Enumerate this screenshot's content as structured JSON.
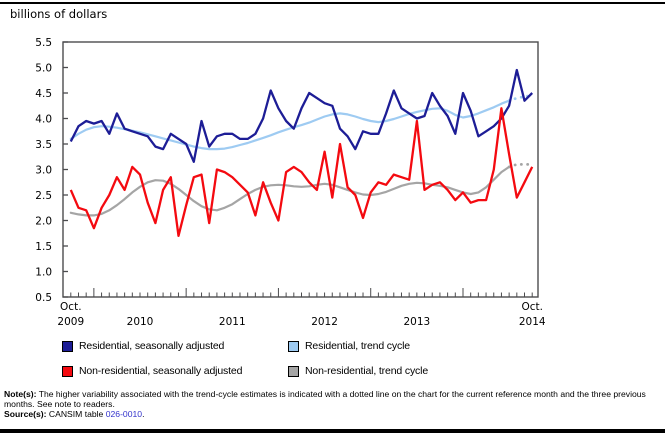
{
  "page": {
    "title": "billions of dollars",
    "note_label": "Note(s):",
    "note_text": " The higher variability associated with the trend-cycle estimates is indicated with a dotted line on the chart for the current reference month and the three previous months. See note to readers.",
    "source_label": "Source(s):",
    "source_text": " CANSIM table ",
    "source_link": "026-0010",
    "source_suffix": "."
  },
  "legend": {
    "items": [
      {
        "label": "Residential, seasonally adjusted",
        "color": "#1d1d96"
      },
      {
        "label": "Residential, trend cycle",
        "color": "#9ecbf2"
      },
      {
        "label": "Non-residential, seasonally adjusted",
        "color": "#f40a10"
      },
      {
        "label": "Non-residential, trend cycle",
        "color": "#a5a5a5"
      }
    ]
  },
  "chart_data": {
    "type": "line",
    "title": "billions of dollars",
    "ylabel": "billions of dollars",
    "ylim": [
      0.5,
      5.5
    ],
    "ytick_step": 0.5,
    "frequency": "monthly",
    "x_start": "Oct 2009",
    "x_end": "Oct 2014",
    "n_points": 61,
    "x_start_label": {
      "month": "Oct.",
      "year": "2009"
    },
    "x_end_label": {
      "month": "Oct.",
      "year": "2014"
    },
    "x_year_labels": [
      "2010",
      "2011",
      "2012",
      "2013"
    ],
    "dotted_tail_start_index": 57,
    "dotted_tail_note": "trend-cycle lines are dotted for the reference month and three previous months",
    "grid": false,
    "legend_position": "below",
    "series": [
      {
        "id": "residential-sa",
        "name": "Residential, seasonally adjusted",
        "color": "#1d1d96",
        "trend": false,
        "values": [
          3.55,
          3.85,
          3.95,
          3.9,
          3.95,
          3.7,
          4.1,
          3.8,
          3.75,
          3.7,
          3.65,
          3.45,
          3.4,
          3.7,
          3.6,
          3.5,
          3.15,
          3.95,
          3.45,
          3.65,
          3.7,
          3.7,
          3.6,
          3.6,
          3.7,
          4.0,
          4.55,
          4.2,
          3.95,
          3.8,
          4.2,
          4.5,
          4.4,
          4.3,
          4.25,
          3.8,
          3.65,
          3.4,
          3.75,
          3.7,
          3.7,
          4.1,
          4.55,
          4.2,
          4.1,
          4.0,
          4.05,
          4.5,
          4.25,
          4.05,
          3.7,
          4.5,
          4.15,
          3.65,
          3.75,
          3.85,
          4.0,
          4.25,
          4.95,
          4.35,
          4.5
        ]
      },
      {
        "id": "residential-trend",
        "name": "Residential, trend cycle",
        "color": "#9ecbf2",
        "trend": true,
        "values": [
          3.6,
          3.7,
          3.78,
          3.83,
          3.85,
          3.84,
          3.82,
          3.79,
          3.76,
          3.73,
          3.69,
          3.65,
          3.61,
          3.57,
          3.53,
          3.49,
          3.45,
          3.42,
          3.4,
          3.4,
          3.41,
          3.44,
          3.48,
          3.52,
          3.57,
          3.62,
          3.67,
          3.73,
          3.78,
          3.83,
          3.87,
          3.92,
          3.98,
          4.04,
          4.08,
          4.1,
          4.08,
          4.04,
          3.99,
          3.95,
          3.93,
          3.95,
          3.99,
          4.04,
          4.09,
          4.13,
          4.16,
          4.19,
          4.2,
          4.15,
          4.07,
          4.02,
          4.05,
          4.1,
          4.16,
          4.22,
          4.29,
          4.35,
          4.4,
          4.43,
          4.45
        ]
      },
      {
        "id": "non-residential-sa",
        "name": "Non-residential, seasonally adjusted",
        "color": "#f40a10",
        "trend": false,
        "values": [
          2.6,
          2.25,
          2.2,
          1.85,
          2.25,
          2.5,
          2.85,
          2.6,
          3.05,
          2.9,
          2.35,
          1.95,
          2.6,
          2.85,
          1.7,
          2.3,
          2.85,
          2.9,
          1.95,
          3.0,
          2.95,
          2.85,
          2.7,
          2.55,
          2.1,
          2.75,
          2.35,
          2.0,
          2.95,
          3.05,
          2.95,
          2.75,
          2.6,
          3.35,
          2.45,
          3.5,
          2.65,
          2.5,
          2.05,
          2.55,
          2.75,
          2.7,
          2.9,
          2.85,
          2.8,
          3.95,
          2.6,
          2.7,
          2.75,
          2.6,
          2.4,
          2.55,
          2.35,
          2.4,
          2.4,
          3.0,
          4.2,
          3.3,
          2.45,
          2.75,
          3.05
        ]
      },
      {
        "id": "non-residential-trend",
        "name": "Non-residential, trend cycle",
        "color": "#a5a5a5",
        "trend": true,
        "values": [
          2.15,
          2.12,
          2.1,
          2.1,
          2.13,
          2.2,
          2.3,
          2.42,
          2.55,
          2.66,
          2.75,
          2.79,
          2.78,
          2.72,
          2.62,
          2.5,
          2.38,
          2.28,
          2.22,
          2.2,
          2.25,
          2.32,
          2.42,
          2.52,
          2.6,
          2.66,
          2.69,
          2.7,
          2.69,
          2.67,
          2.66,
          2.67,
          2.7,
          2.72,
          2.7,
          2.65,
          2.6,
          2.55,
          2.51,
          2.5,
          2.52,
          2.56,
          2.62,
          2.68,
          2.72,
          2.74,
          2.73,
          2.7,
          2.68,
          2.65,
          2.6,
          2.55,
          2.52,
          2.55,
          2.65,
          2.8,
          2.95,
          3.05,
          3.1,
          3.1,
          3.1
        ]
      }
    ]
  }
}
